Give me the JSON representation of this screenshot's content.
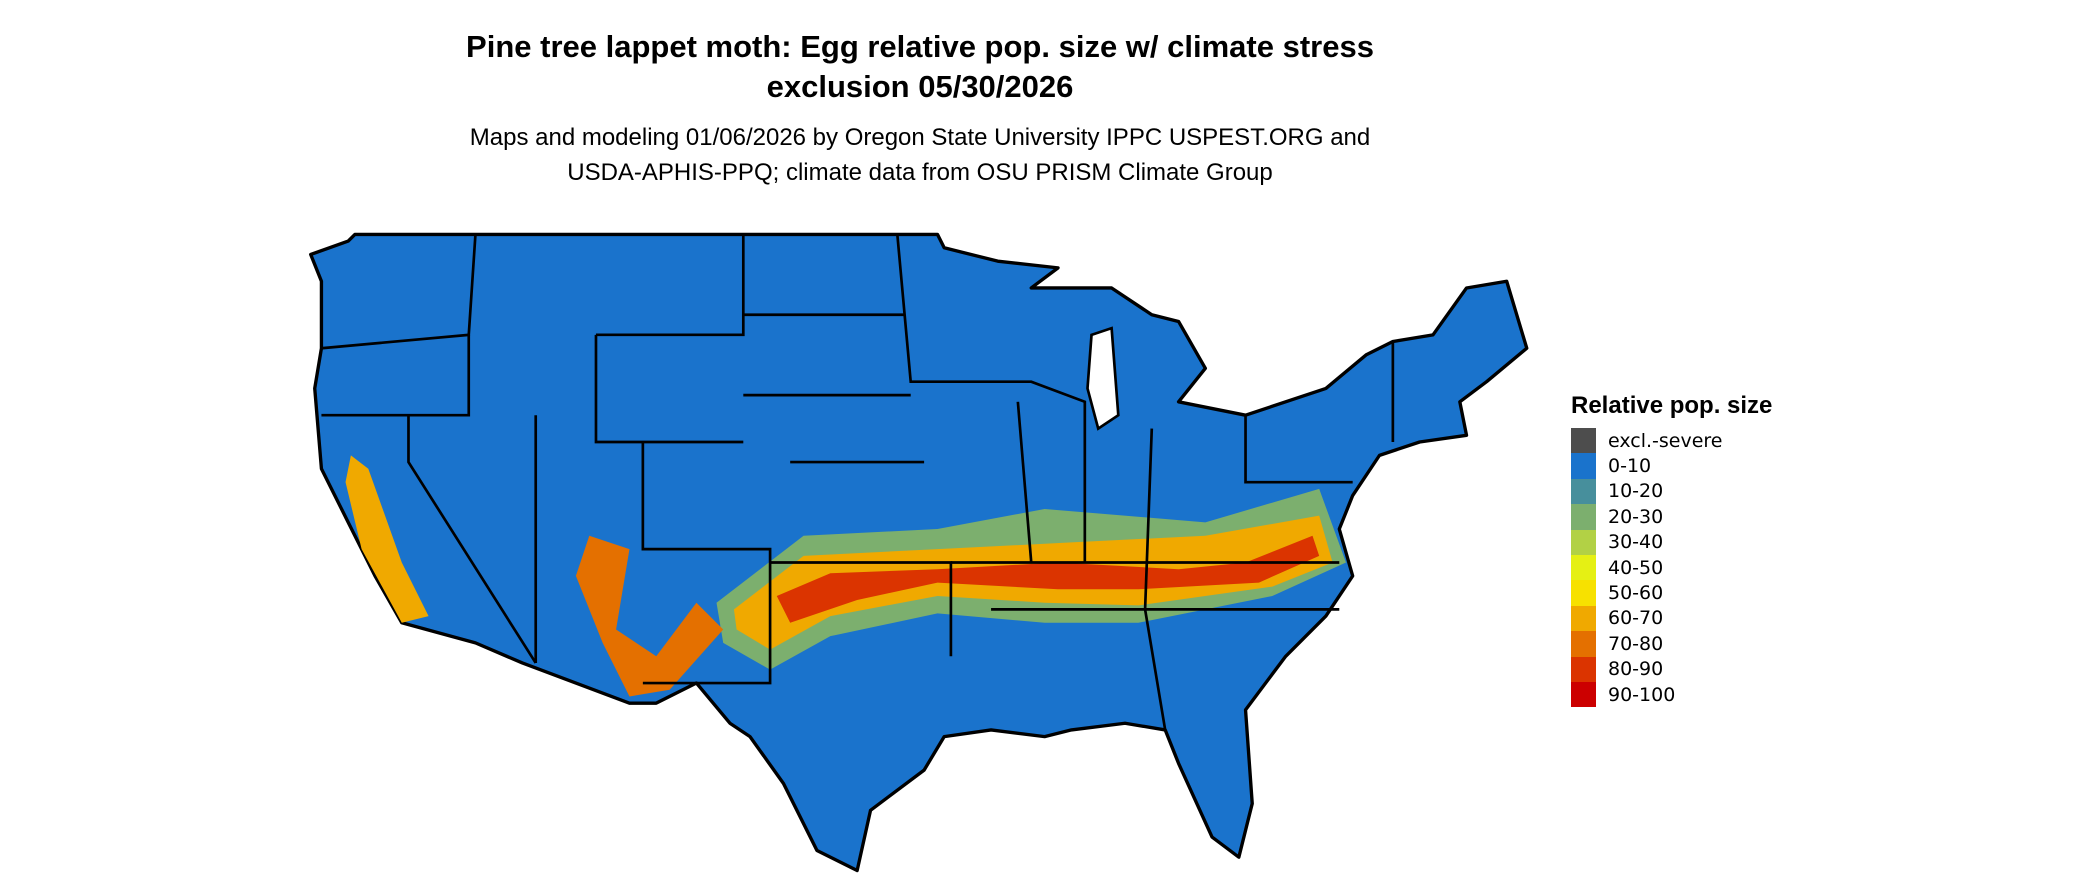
{
  "title_line1": "Pine tree lappet moth: Egg relative pop. size w/ climate stress",
  "title_line2": "exclusion 05/30/2026",
  "subtitle_line1": "Maps and modeling 01/06/2026 by Oregon State University IPPC USPEST.ORG and",
  "subtitle_line2": "USDA-APHIS-PPQ; climate data from OSU PRISM Climate Group",
  "legend": {
    "title": "Relative pop. size",
    "items": [
      {
        "label": "excl.-severe",
        "color": "#4d4d4d"
      },
      {
        "label": "0-10",
        "color": "#1a73cc"
      },
      {
        "label": "10-20",
        "color": "#478f9c"
      },
      {
        "label": "20-30",
        "color": "#7caf6e"
      },
      {
        "label": "30-40",
        "color": "#b2d145"
      },
      {
        "label": "40-50",
        "color": "#e5f014"
      },
      {
        "label": "50-60",
        "color": "#f7e100"
      },
      {
        "label": "60-70",
        "color": "#f0a900"
      },
      {
        "label": "70-80",
        "color": "#e47000"
      },
      {
        "label": "80-90",
        "color": "#db3400"
      },
      {
        "label": "90-100",
        "color": "#cc0000"
      }
    ]
  }
}
